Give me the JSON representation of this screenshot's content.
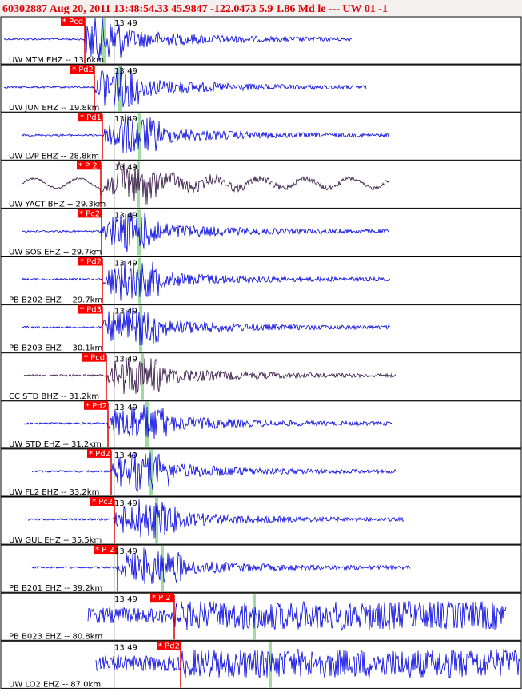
{
  "header": {
    "title": "60302887 Aug 20, 2011 13:48:54.33   45.9847 -122.0473  5.9 1.86 Md le --- UW 01  -1"
  },
  "panels": [
    {
      "label": "UW MTM EHZ -- 13.6km",
      "time": "13:49",
      "pick": "* Pcd"
    },
    {
      "label": "UW JUN EHZ -- 19.8km",
      "time": "13:49",
      "pick": "* Pd2"
    },
    {
      "label": "UW LVP EHZ -- 28.8km",
      "time": "13:49",
      "pick": "* Pd1"
    },
    {
      "label": "UW YACT BHZ -- 29.3km",
      "time": "13:49",
      "pick": "* P 2"
    },
    {
      "label": "UW SOS EHZ -- 29.7km",
      "time": "13:49",
      "pick": "* Pc2"
    },
    {
      "label": "PB B202 EHZ -- 29.7km",
      "time": "13:49",
      "pick": "* Pd2"
    },
    {
      "label": "PB B203 EHZ -- 30.1km",
      "time": "13:49",
      "pick": "* Pd3"
    },
    {
      "label": "CC STD BHZ -- 31.2km",
      "time": "13:49",
      "pick": "* Pcd"
    },
    {
      "label": "UW STD EHZ -- 31.2km",
      "time": "13:49",
      "pick": "* Pd2"
    },
    {
      "label": "UW FL2 EHZ -- 33.2km",
      "time": "13:49",
      "pick": "* Pd2"
    },
    {
      "label": "UW GUL EHZ -- 35.5km",
      "time": "13:49",
      "pick": "* Pc2"
    },
    {
      "label": "PB B201 EHZ -- 39.2km",
      "time": "13:49",
      "pick": "* P 2"
    },
    {
      "label": "PB B023 EHZ -- 80.8km",
      "time": "13:49",
      "pick": "* P 2"
    },
    {
      "label": "UW LO2 EHZ -- 87.0km",
      "time": "13:49",
      "pick": "* Pd2"
    }
  ]
}
